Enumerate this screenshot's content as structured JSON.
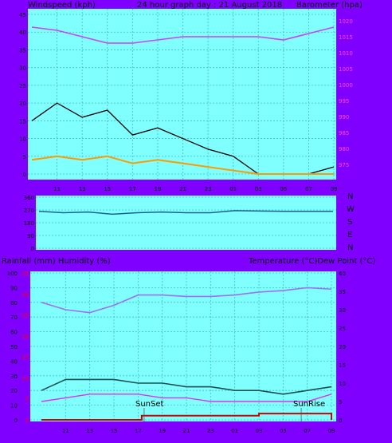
{
  "header": {
    "left": "Windspeed (kph)",
    "center": "24 hour graph day : 21 August 2018",
    "right": "Barometer (hpa)"
  },
  "middle": {
    "right_labels": [
      "N",
      "W",
      "S",
      "E",
      "N"
    ]
  },
  "bottom_header": {
    "left": "Rainfall (mm)  Humidity (%)",
    "right": "Temperature (°C)Dew Point (°C)"
  },
  "annotations": {
    "sunset": "SunSet",
    "sunrise": "SunRise"
  },
  "colors": {
    "background": "#8000ff",
    "plot": "#80ffff",
    "grid": "#40c0c0",
    "wind_gust": "#000000",
    "wind_avg": "#ff9900",
    "wind_light": "#c0ff00",
    "barometer": "#cc44ee",
    "direction": "#1f5f8f",
    "humidity": "#a070f0",
    "temperature": "#1f4f4f",
    "dewpoint": "#dd33ee",
    "rainfall": "#cc0000"
  },
  "chart_data": [
    {
      "type": "line",
      "title": "24 hour graph day : 21 August 2018",
      "ylabel": "Windspeed (kph)",
      "y2label": "Barometer (hpa)",
      "x_ticks": [
        "11",
        "13",
        "15",
        "17",
        "19",
        "21",
        "23",
        "01",
        "03",
        "05",
        "07",
        "09"
      ],
      "ylim": [
        0,
        45
      ],
      "yticks": [
        0,
        5,
        10,
        15,
        20,
        25,
        30,
        35,
        40,
        45
      ],
      "y2lim": [
        972,
        1022
      ],
      "y2ticks": [
        975,
        980,
        985,
        990,
        995,
        1000,
        1005,
        1010,
        1015,
        1020
      ],
      "series": [
        {
          "name": "Barometer",
          "axis": "right",
          "x": [
            9,
            11,
            13,
            15,
            17,
            19,
            21,
            23,
            1,
            3,
            5,
            7,
            9
          ],
          "values": [
            1018,
            1017,
            1015,
            1013,
            1013,
            1014,
            1015,
            1015,
            1015,
            1015,
            1014,
            1016,
            1018
          ]
        },
        {
          "name": "Wind gust",
          "axis": "left",
          "x": [
            9,
            11,
            13,
            15,
            17,
            19,
            21,
            23,
            1,
            3,
            5,
            7,
            9
          ],
          "values": [
            15,
            20,
            16,
            18,
            11,
            13,
            10,
            7,
            5,
            0,
            0,
            0,
            2
          ]
        },
        {
          "name": "Wind average",
          "axis": "left",
          "x": [
            9,
            11,
            13,
            15,
            17,
            19,
            21,
            23,
            1,
            3,
            5,
            7,
            9
          ],
          "values": [
            4,
            5,
            4,
            5,
            3,
            4,
            3,
            2,
            1,
            0,
            0,
            0,
            0
          ]
        }
      ]
    },
    {
      "type": "line",
      "ylabel": "Direction",
      "yticks": [
        0,
        90,
        180,
        270,
        360
      ],
      "ylim": [
        0,
        360
      ],
      "right_ticks": [
        "N",
        "W",
        "S",
        "E",
        "N"
      ],
      "series": [
        {
          "name": "Wind direction",
          "x": [
            9,
            11,
            13,
            15,
            17,
            19,
            21,
            23,
            1,
            3,
            5,
            7,
            9
          ],
          "values": [
            260,
            250,
            255,
            240,
            250,
            255,
            250,
            250,
            265,
            262,
            260,
            260,
            260
          ]
        }
      ]
    },
    {
      "type": "line",
      "xlabel": "",
      "ylabel": "Rainfall (mm)  Humidity (%)",
      "y2label": "Temperature (°C)Dew Point (°C)",
      "x_ticks": [
        "11",
        "13",
        "15",
        "17",
        "19",
        "21",
        "23",
        "01",
        "03",
        "05",
        "07",
        "09"
      ],
      "humidity_ticks": [
        0,
        10,
        20,
        30,
        40,
        50,
        60,
        70,
        80,
        90,
        100
      ],
      "rain_ticks": [
        0,
        5,
        10,
        15,
        20,
        25,
        30,
        35
      ],
      "ylim": [
        0,
        100
      ],
      "y2lim": [
        0,
        40
      ],
      "y2ticks": [
        0,
        5,
        10,
        15,
        20,
        25,
        30,
        35,
        40
      ],
      "series": [
        {
          "name": "Humidity",
          "axis": "left",
          "x": [
            9,
            11,
            13,
            15,
            17,
            19,
            21,
            23,
            1,
            3,
            5,
            7,
            9
          ],
          "values": [
            80,
            75,
            73,
            78,
            85,
            85,
            84,
            84,
            85,
            87,
            88,
            90,
            89
          ]
        },
        {
          "name": "Temperature",
          "axis": "right",
          "x": [
            9,
            11,
            13,
            15,
            17,
            19,
            21,
            23,
            1,
            3,
            5,
            7,
            9
          ],
          "values": [
            8,
            11,
            11,
            11,
            10,
            10,
            9,
            9,
            8,
            8,
            7,
            8,
            9
          ]
        },
        {
          "name": "Dew Point",
          "axis": "right",
          "x": [
            9,
            11,
            13,
            15,
            17,
            19,
            21,
            23,
            1,
            3,
            5,
            7,
            9
          ],
          "values": [
            5,
            6,
            7,
            7,
            7,
            6,
            6,
            5,
            5,
            5,
            5,
            5,
            7
          ]
        },
        {
          "name": "Rainfall",
          "axis": "rain",
          "x": [
            9,
            11,
            13,
            15,
            17,
            17.3,
            19,
            21,
            23,
            1,
            3,
            5,
            7,
            9
          ],
          "values": [
            0,
            0,
            0,
            0,
            0,
            1,
            1,
            1,
            1,
            1,
            1.5,
            1.5,
            1.5,
            0
          ]
        }
      ]
    }
  ]
}
